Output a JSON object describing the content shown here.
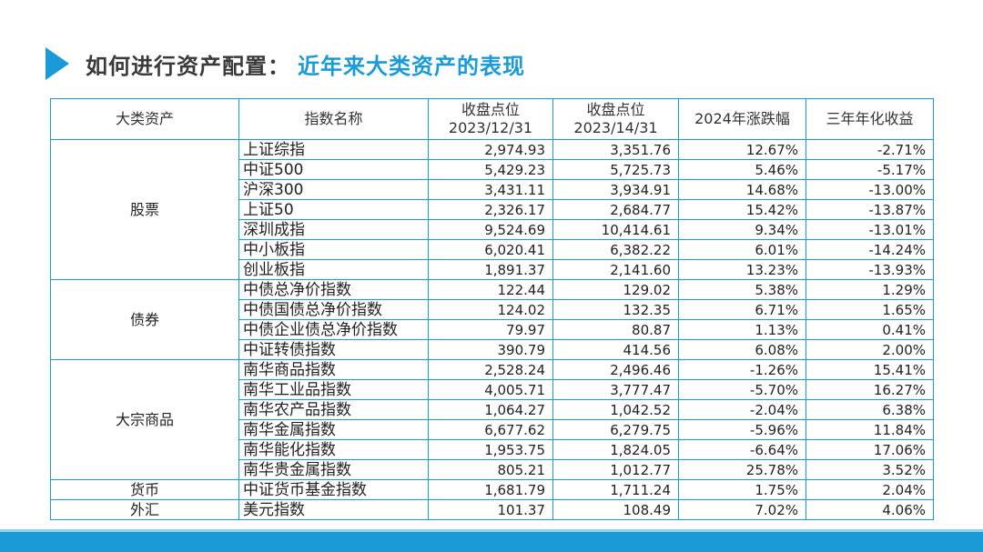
{
  "title": {
    "main": "如何进行资产配置：",
    "sub": "近年来大类资产的表现"
  },
  "table": {
    "headers": [
      "大类资产",
      "指数名称",
      "收盘点位\n2023/12/31",
      "收盘点位\n2023/14/31",
      "2024年涨跌幅",
      "三年年化收益"
    ],
    "groups": [
      {
        "category": "股票",
        "rows": [
          {
            "name": "上证综指",
            "close_2023": "2,974.93",
            "close_2024": "3,351.76",
            "change": "12.67%",
            "annualized": "-2.71%"
          },
          {
            "name": "中证500",
            "close_2023": "5,429.23",
            "close_2024": "5,725.73",
            "change": "5.46%",
            "annualized": "-5.17%"
          },
          {
            "name": "沪深300",
            "close_2023": "3,431.11",
            "close_2024": "3,934.91",
            "change": "14.68%",
            "annualized": "-13.00%"
          },
          {
            "name": "上证50",
            "close_2023": "2,326.17",
            "close_2024": "2,684.77",
            "change": "15.42%",
            "annualized": "-13.87%"
          },
          {
            "name": "深圳成指",
            "close_2023": "9,524.69",
            "close_2024": "10,414.61",
            "change": "9.34%",
            "annualized": "-13.01%"
          },
          {
            "name": "中小板指",
            "close_2023": "6,020.41",
            "close_2024": "6,382.22",
            "change": "6.01%",
            "annualized": "-14.24%"
          },
          {
            "name": "创业板指",
            "close_2023": "1,891.37",
            "close_2024": "2,141.60",
            "change": "13.23%",
            "annualized": "-13.93%"
          }
        ]
      },
      {
        "category": "债券",
        "rows": [
          {
            "name": "中债总净价指数",
            "close_2023": "122.44",
            "close_2024": "129.02",
            "change": "5.38%",
            "annualized": "1.29%"
          },
          {
            "name": "中债国债总净价指数",
            "close_2023": "124.02",
            "close_2024": "132.35",
            "change": "6.71%",
            "annualized": "1.65%"
          },
          {
            "name": "中债企业债总净价指数",
            "close_2023": "79.97",
            "close_2024": "80.87",
            "change": "1.13%",
            "annualized": "0.41%"
          },
          {
            "name": "中证转债指数",
            "close_2023": "390.79",
            "close_2024": "414.56",
            "change": "6.08%",
            "annualized": "2.00%"
          }
        ]
      },
      {
        "category": "大宗商品",
        "rows": [
          {
            "name": "南华商品指数",
            "close_2023": "2,528.24",
            "close_2024": "2,496.46",
            "change": "-1.26%",
            "annualized": "15.41%"
          },
          {
            "name": "南华工业品指数",
            "close_2023": "4,005.71",
            "close_2024": "3,777.47",
            "change": "-5.70%",
            "annualized": "16.27%"
          },
          {
            "name": "南华农产品指数",
            "close_2023": "1,064.27",
            "close_2024": "1,042.52",
            "change": "-2.04%",
            "annualized": "6.38%"
          },
          {
            "name": "南华金属指数",
            "close_2023": "6,677.62",
            "close_2024": "6,279.75",
            "change": "-5.96%",
            "annualized": "11.84%"
          },
          {
            "name": "南华能化指数",
            "close_2023": "1,953.75",
            "close_2024": "1,824.05",
            "change": "-6.64%",
            "annualized": "17.06%"
          },
          {
            "name": "南华贵金属指数",
            "close_2023": "805.21",
            "close_2024": "1,012.77",
            "change": "25.78%",
            "annualized": "3.52%"
          }
        ]
      },
      {
        "category": "货币",
        "rows": [
          {
            "name": "中证货币基金指数",
            "close_2023": "1,681.79",
            "close_2024": "1,711.24",
            "change": "1.75%",
            "annualized": "2.04%"
          }
        ]
      },
      {
        "category": "外汇",
        "rows": [
          {
            "name": "美元指数",
            "close_2023": "101.37",
            "close_2024": "108.49",
            "change": "7.02%",
            "annualized": "4.06%"
          }
        ]
      }
    ]
  },
  "colors": {
    "accent": "#1a9ad6",
    "title": "#3a3a3a"
  }
}
